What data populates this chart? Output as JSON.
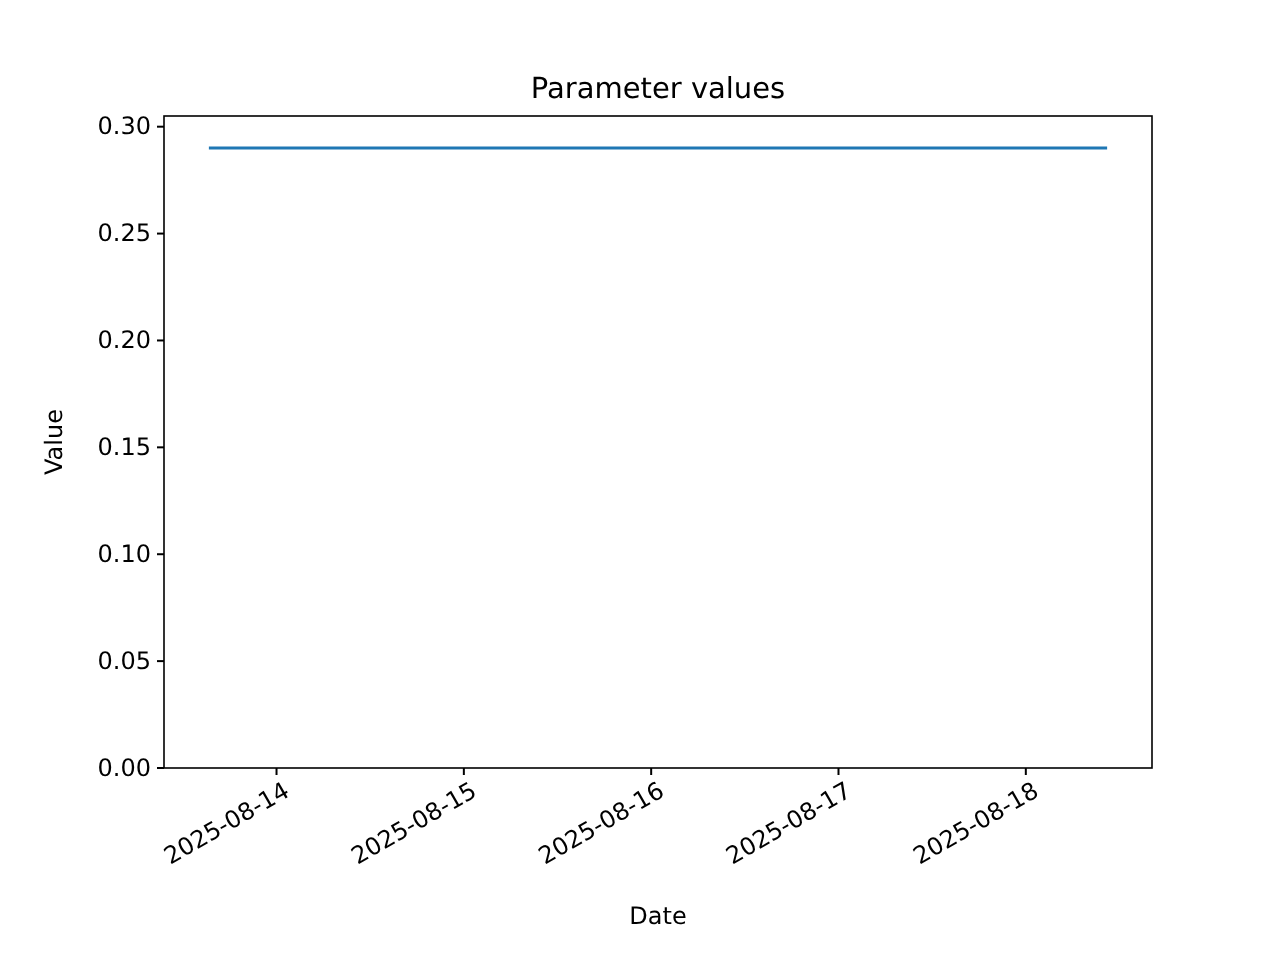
{
  "chart_data": {
    "type": "line",
    "title": "Parameter values",
    "xlabel": "Date",
    "ylabel": "Value",
    "x": [
      "2025-08-13T15:20",
      "2025-08-18T10:25"
    ],
    "series": [
      {
        "color": "#1f77b4",
        "values": [
          0.29,
          0.29
        ]
      }
    ],
    "xlim": [
      "2025-08-13T09:35",
      "2025-08-18T16:10"
    ],
    "xticks": [
      {
        "value": "2025-08-14",
        "label": "2025-08-14"
      },
      {
        "value": "2025-08-15",
        "label": "2025-08-15"
      },
      {
        "value": "2025-08-16",
        "label": "2025-08-16"
      },
      {
        "value": "2025-08-17",
        "label": "2025-08-17"
      },
      {
        "value": "2025-08-18",
        "label": "2025-08-18"
      }
    ],
    "ylim": [
      0,
      0.305
    ],
    "yticks": [
      {
        "value": 0,
        "label": "0.00"
      },
      {
        "value": 0.05,
        "label": "0.05"
      },
      {
        "value": 0.1,
        "label": "0.10"
      },
      {
        "value": 0.15,
        "label": "0.15"
      },
      {
        "value": 0.2,
        "label": "0.20"
      },
      {
        "value": 0.25,
        "label": "0.25"
      },
      {
        "value": 0.3,
        "label": "0.30"
      }
    ],
    "line_style": "solid",
    "marker": "none"
  }
}
